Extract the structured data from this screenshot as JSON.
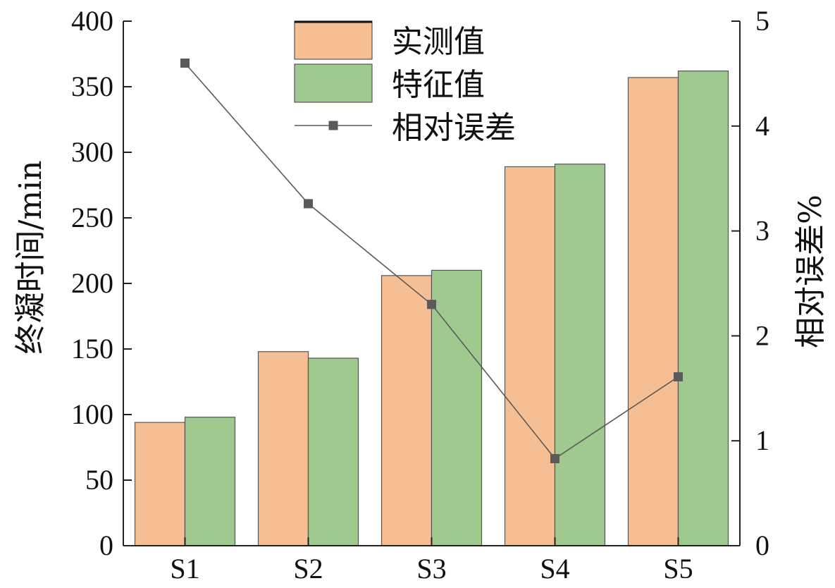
{
  "chart_data": {
    "type": "bar",
    "categories": [
      "S1",
      "S2",
      "S3",
      "S4",
      "S5"
    ],
    "series": [
      {
        "name": "实测值",
        "kind": "bar",
        "axis": "left",
        "color": "#F5BF93",
        "values": [
          94,
          148,
          206,
          289,
          357
        ]
      },
      {
        "name": "特征值",
        "kind": "bar",
        "axis": "left",
        "color": "#A0C98F",
        "values": [
          98,
          143,
          210,
          291,
          362
        ]
      },
      {
        "name": "相对误差",
        "kind": "line",
        "axis": "right",
        "color": "#5a5a5a",
        "marker": "square",
        "values": [
          4.6,
          3.26,
          2.3,
          0.83,
          1.61
        ]
      }
    ],
    "ylabel": "终凝时间/min",
    "y2label": "相对误差%",
    "ylim": [
      0,
      400
    ],
    "y2lim": [
      0,
      5
    ],
    "yticks": [
      "0",
      "50",
      "100",
      "150",
      "200",
      "250",
      "300",
      "350",
      "400"
    ],
    "y2ticks": [
      "0",
      "1",
      "2",
      "3",
      "4",
      "5"
    ],
    "grid": false,
    "legend_position": "top-center"
  }
}
